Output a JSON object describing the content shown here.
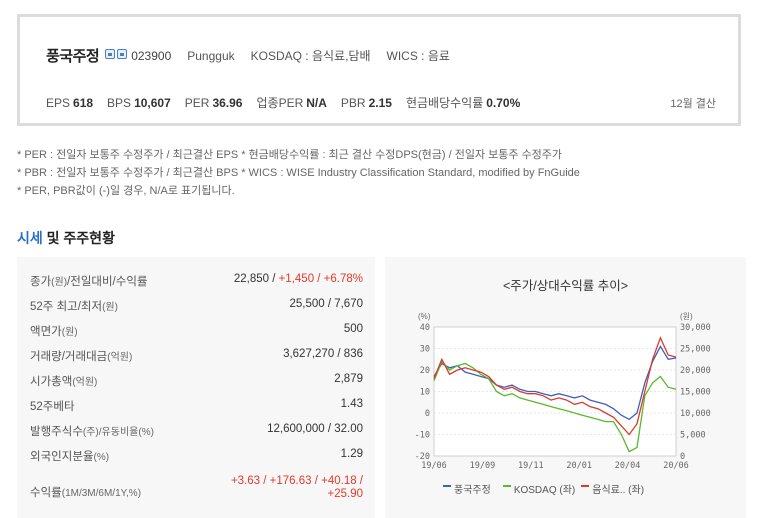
{
  "company": {
    "name": "풍국주정",
    "code": "023900",
    "english_name": "Pungguk",
    "market": "KOSDAQ : 음식료,담배",
    "wics": "WICS : 음료"
  },
  "metrics": [
    {
      "label": "EPS",
      "value": "618"
    },
    {
      "label": "BPS",
      "value": "10,607"
    },
    {
      "label": "PER",
      "value": "36.96"
    },
    {
      "label": "업종PER",
      "value": "N/A"
    },
    {
      "label": "PBR",
      "value": "2.15"
    },
    {
      "label": "현금배당수익률",
      "value": "0.70%"
    }
  ],
  "settlement": "12월 결산",
  "notes": [
    "* PER : 전일자 보통주 수정주가 / 최근결산 EPS * 현금배당수익률 : 최근 결산 수정DPS(현금) / 전일자 보통주 수정주가",
    "* PBR : 전일자 보통주 수정주가 / 최근결산 BPS * WICS : WISE Industry Classification Standard, modified by FnGuide",
    "* PER, PBR값이 (-)일 경우, N/A로 표기됩니다."
  ],
  "section": {
    "title_highlight": "시세",
    "title_rest": "및 주주현황"
  },
  "table": {
    "rows": [
      {
        "label": "종가",
        "unit": "(원)",
        "label2": "/전일대비/수익률",
        "value_plain": "22,850 / ",
        "value_red": "+1,450 / +6.78%"
      },
      {
        "label": "52주 최고/최저",
        "unit": "(원)",
        "label2": "",
        "value_plain": "25,500 / 7,670",
        "value_red": ""
      },
      {
        "label": "액면가",
        "unit": "(원)",
        "label2": "",
        "value_plain": "500",
        "value_red": ""
      },
      {
        "label": "거래량/거래대금",
        "unit": "(억원)",
        "label2": "",
        "value_plain": "3,627,270 / 836",
        "value_red": ""
      },
      {
        "label": "시가총액",
        "unit": "(억원)",
        "label2": "",
        "value_plain": "2,879",
        "value_red": ""
      },
      {
        "label": "52주베타",
        "unit": "",
        "label2": "",
        "value_plain": "1.43",
        "value_red": ""
      },
      {
        "label": "발행주식수",
        "unit": "(주)",
        "label2": "/유동비율(%)",
        "value_plain": "12,600,000 / 32.00",
        "value_red": ""
      },
      {
        "label": "외국인지분율",
        "unit": "(%)",
        "label2": "",
        "value_plain": "1.29",
        "value_red": ""
      }
    ],
    "returns": {
      "label": "수익률",
      "unit": "(1M/3M/6M/1Y,%)",
      "line1": "+3.63 / +176.63 / +40.18 /",
      "line2": "+25.90"
    }
  },
  "chart_data": {
    "type": "line",
    "title": "<주가/상대수익률 추이>",
    "left_axis": {
      "unit": "(%)",
      "range": [
        -20,
        40
      ],
      "ticks": [
        "40",
        "30",
        "20",
        "10",
        "0",
        "-10",
        "-20"
      ]
    },
    "right_axis": {
      "unit": "(원)",
      "range": [
        0,
        30000
      ],
      "ticks": [
        "30,000",
        "25,000",
        "20,000",
        "15,000",
        "10,000",
        "5,000",
        "0"
      ]
    },
    "x_ticks": [
      "19/06",
      "19/09",
      "19/11",
      "20/01",
      "20/04",
      "20/06"
    ],
    "series": [
      {
        "name": "풍국주정",
        "color": "#3f5fbf",
        "axis": "right",
        "values": [
          18500,
          21500,
          20500,
          21000,
          19500,
          19000,
          18500,
          18000,
          16500,
          16000,
          16500,
          15500,
          15000,
          15000,
          14500,
          14000,
          14500,
          14000,
          13500,
          14000,
          13000,
          12500,
          12000,
          11000,
          9500,
          8500,
          10000,
          17000,
          22000,
          25500,
          22500,
          22800
        ]
      },
      {
        "name": "KOSDAQ (좌)",
        "color": "#5cb82c",
        "axis": "left",
        "values": [
          15,
          24,
          20,
          22,
          23,
          21,
          18,
          16,
          10,
          8,
          9,
          7,
          6,
          5,
          4,
          3,
          2,
          1,
          0,
          -1,
          -2,
          -3,
          -4,
          -4,
          -10,
          -18,
          -16,
          8,
          14,
          17,
          12,
          11
        ]
      },
      {
        "name": "음식료.. (좌)",
        "color": "#d93b2b",
        "axis": "left",
        "values": [
          16,
          25,
          18,
          20,
          21,
          20,
          19,
          17,
          13,
          11,
          12,
          10,
          9,
          9,
          8,
          6,
          7,
          6,
          4,
          5,
          3,
          2,
          0,
          -2,
          -6,
          -10,
          -5,
          10,
          25,
          35,
          27,
          26
        ]
      }
    ]
  }
}
